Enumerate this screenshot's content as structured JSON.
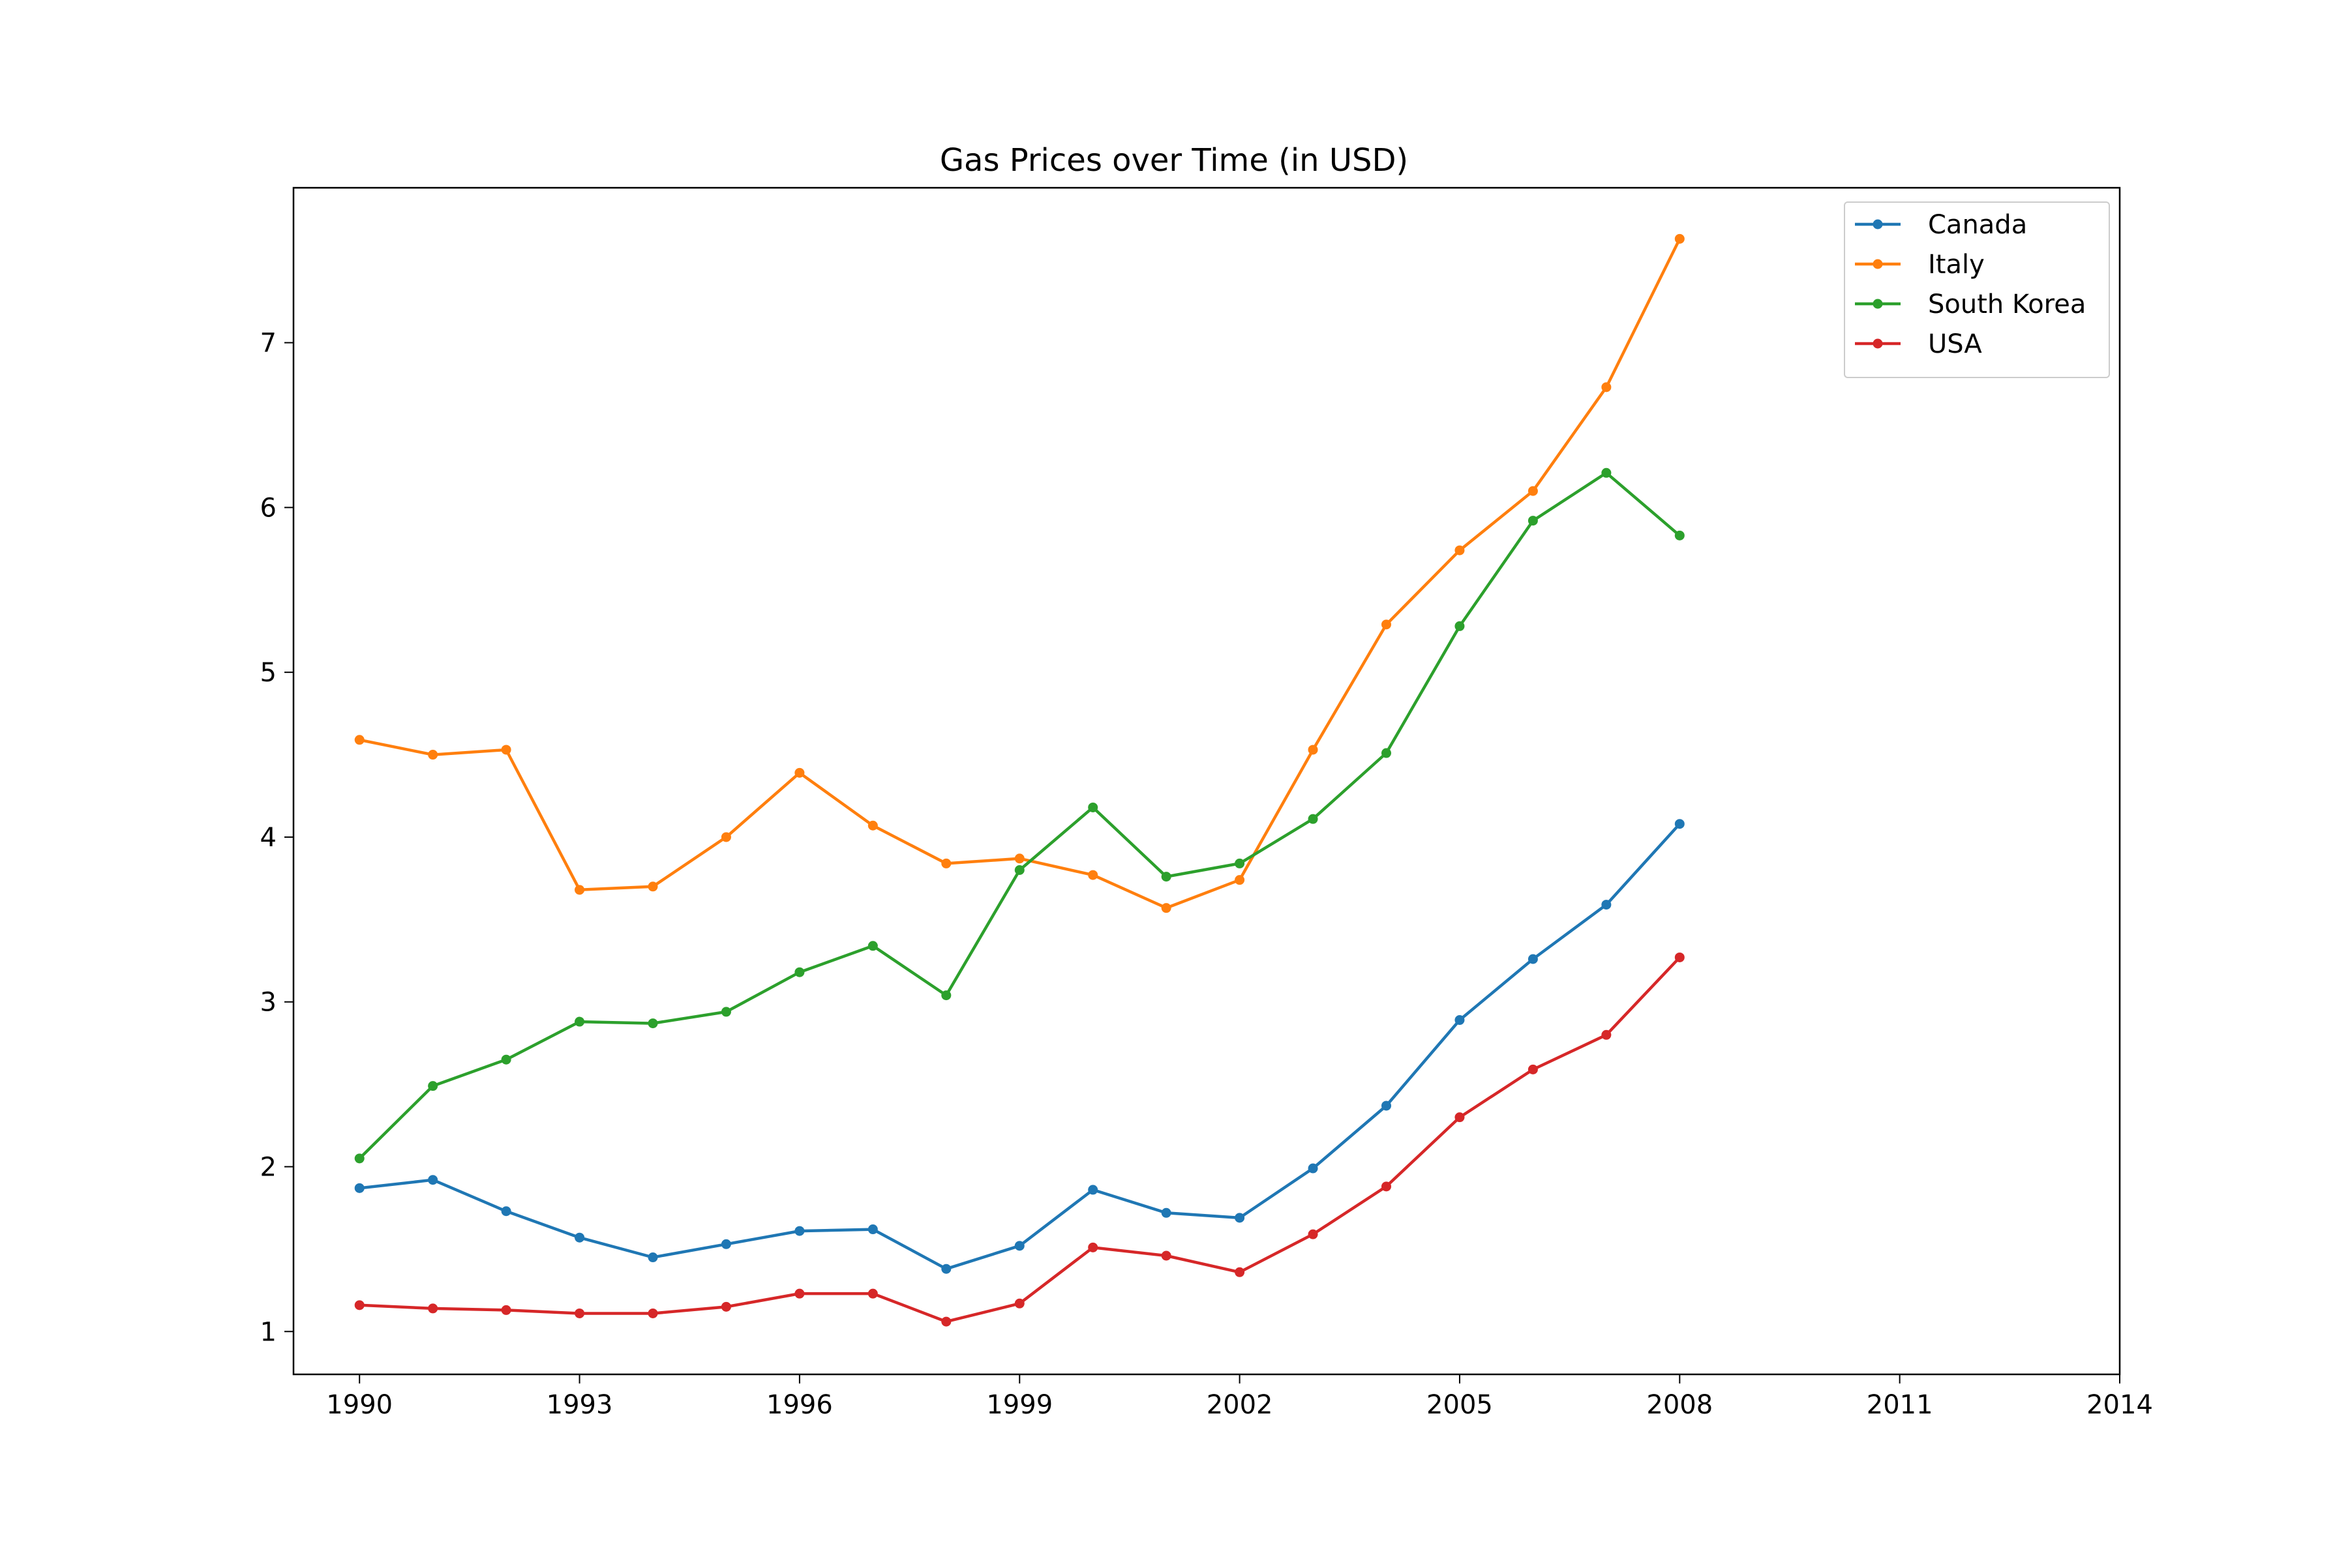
{
  "chart_data": {
    "type": "line",
    "title": "Gas Prices over Time (in USD)",
    "xlabel": "",
    "ylabel": "",
    "xlim": [
      1989.1,
      2014
    ],
    "ylim": [
      0.74,
      7.94
    ],
    "x_ticks": [
      1990,
      1993,
      1996,
      1999,
      2002,
      2005,
      2008,
      2011,
      2014
    ],
    "y_ticks": [
      1,
      2,
      3,
      4,
      5,
      6,
      7
    ],
    "grid": false,
    "legend_position": "upper right",
    "x": [
      1990,
      1991,
      1992,
      1993,
      1994,
      1995,
      1996,
      1997,
      1998,
      1999,
      2000,
      2001,
      2002,
      2003,
      2004,
      2005,
      2006,
      2007,
      2008
    ],
    "series": [
      {
        "name": "Canada",
        "color": "#1f77b4",
        "values": [
          1.87,
          1.92,
          1.73,
          1.57,
          1.45,
          1.53,
          1.61,
          1.62,
          1.38,
          1.52,
          1.86,
          1.72,
          1.69,
          1.99,
          2.37,
          2.89,
          3.26,
          3.59,
          4.08
        ]
      },
      {
        "name": "Italy",
        "color": "#ff7f0e",
        "values": [
          4.59,
          4.5,
          4.53,
          3.68,
          3.7,
          4.0,
          4.39,
          4.07,
          3.84,
          3.87,
          3.77,
          3.57,
          3.74,
          4.53,
          5.29,
          5.74,
          6.1,
          6.73,
          7.63
        ]
      },
      {
        "name": "South Korea",
        "color": "#2ca02c",
        "values": [
          2.05,
          2.49,
          2.65,
          2.88,
          2.87,
          2.94,
          3.18,
          3.34,
          3.04,
          3.8,
          4.18,
          3.76,
          3.84,
          4.11,
          4.51,
          5.28,
          5.92,
          6.21,
          5.83
        ]
      },
      {
        "name": "USA",
        "color": "#d62728",
        "values": [
          1.16,
          1.14,
          1.13,
          1.11,
          1.11,
          1.15,
          1.23,
          1.23,
          1.06,
          1.17,
          1.51,
          1.46,
          1.36,
          1.59,
          1.88,
          2.3,
          2.59,
          2.8,
          3.27
        ]
      }
    ]
  }
}
